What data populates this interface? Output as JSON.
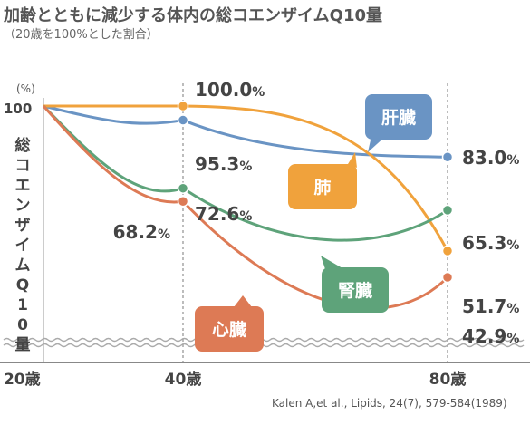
{
  "chart_data": {
    "type": "line",
    "title": "加齢とともに減少する体内の総コエンザイムQ10量",
    "subtitle": "（20歳を100%とした割合）",
    "ylabel": "総コエンザイムQ10量",
    "yunit": "(%)",
    "ytick": "100",
    "x_ticks": [
      "20歳",
      "40歳",
      "80歳"
    ],
    "x": [
      20,
      40,
      80
    ],
    "series": [
      {
        "name": "肝臓",
        "values": [
          100,
          95.3,
          83.0
        ],
        "labels": [
          "",
          "95.3%",
          "83.0%"
        ],
        "color": "#6a94c4"
      },
      {
        "name": "肺",
        "values": [
          100,
          100.0,
          51.7
        ],
        "labels": [
          "",
          "100.0%",
          "51.7%"
        ],
        "color": "#f0a23c"
      },
      {
        "name": "腎臓",
        "values": [
          100,
          72.6,
          65.3
        ],
        "labels": [
          "",
          "72.6%",
          "65.3%"
        ],
        "color": "#5ea37a"
      },
      {
        "name": "心臓",
        "values": [
          100,
          68.2,
          42.9
        ],
        "labels": [
          "",
          "68.2%",
          "42.9%"
        ],
        "color": "#dd7a55"
      }
    ],
    "citation": "Kalen A,et al., Lipids, 24(7), 579-584(1989)"
  }
}
